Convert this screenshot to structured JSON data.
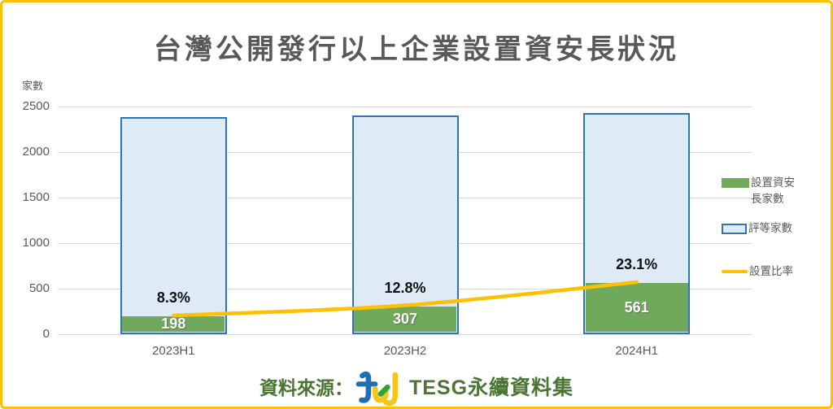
{
  "title": "台灣公開發行以上企業設置資安長狀況",
  "chart_data": {
    "type": "bar",
    "categories": [
      "2023H1",
      "2023H2",
      "2024H1"
    ],
    "series": [
      {
        "name": "設置資安長家數",
        "type": "bar",
        "values": [
          198,
          307,
          561
        ],
        "color": "#70A95C"
      },
      {
        "name": "評等家數",
        "type": "bar",
        "values": [
          2386,
          2398,
          2429
        ],
        "fill": "#DEEAF6",
        "border_color": "#2E75B6"
      },
      {
        "name": "設置比率",
        "type": "line",
        "values": [
          8.3,
          12.8,
          23.1
        ],
        "unit": "%",
        "color": "#FFC000"
      }
    ],
    "bar_value_labels": [
      "198",
      "307",
      "561"
    ],
    "pct_value_labels": [
      "8.3%",
      "12.8%",
      "23.1%"
    ],
    "ylabel": "家數",
    "xlabel": "",
    "yticks": [
      0,
      500,
      1000,
      1500,
      2000,
      2500
    ],
    "ylim": [
      0,
      2500
    ],
    "grid": true,
    "legend_position": "right"
  },
  "legend": {
    "items": [
      {
        "label": "設置資安長家數",
        "swatch": "green-fill"
      },
      {
        "label": "評等家數",
        "swatch": "blue-outlined"
      },
      {
        "label": "設置比率",
        "swatch": "yellow-line"
      }
    ]
  },
  "source": {
    "prefix": "資料來源：",
    "logo": "tej-logo",
    "name": "TESG永續資料集"
  },
  "colors": {
    "ciso_green": "#70A95C",
    "rated_fill": "#DEEAF6",
    "rated_border": "#2E75B6",
    "ratio_yellow": "#FFC000",
    "frame_border": "#FFC000",
    "text_gray": "#595959",
    "gridline": "#D9D9D9",
    "source_green": "#4A7533",
    "pct_label": "#111111",
    "bar_label": "#FFFFFF"
  }
}
